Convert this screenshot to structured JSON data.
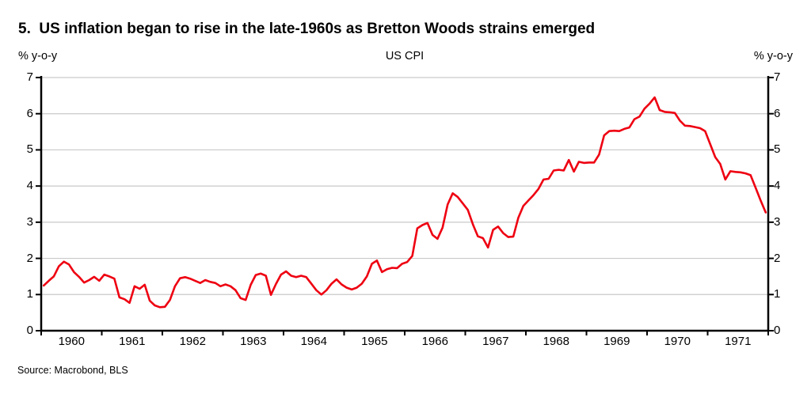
{
  "title": "5.  US inflation began to rise in the late-1960s as Bretton Woods strains emerged",
  "subtitle": "US CPI",
  "left_axis_unit": "% y-o-y",
  "right_axis_unit": "% y-o-y",
  "source": "Source: Macrobond, BLS",
  "colors": {
    "line": "#ee0011",
    "grid": "#c9c9c9",
    "axis": "#000000",
    "text": "#000000",
    "background": "#ffffff"
  },
  "chart_data": {
    "type": "line",
    "title": "US CPI",
    "xlabel": "",
    "ylabel": "% y-o-y",
    "ylim": [
      0,
      7
    ],
    "yticks": [
      0,
      1,
      2,
      3,
      4,
      5,
      6,
      7
    ],
    "grid": "horizontal",
    "legend_position": "none",
    "x_frequency": "monthly",
    "x_start": "1960-01",
    "x_end": "1971-12",
    "x_year_labels": [
      "1960",
      "1961",
      "1962",
      "1963",
      "1964",
      "1965",
      "1966",
      "1967",
      "1968",
      "1969",
      "1970",
      "1971"
    ],
    "series": [
      {
        "name": "US CPI (% y-o-y)",
        "color": "#ee0011",
        "values": [
          1.25,
          1.38,
          1.5,
          1.78,
          1.91,
          1.83,
          1.62,
          1.49,
          1.33,
          1.4,
          1.49,
          1.38,
          1.55,
          1.5,
          1.44,
          0.92,
          0.87,
          0.77,
          1.23,
          1.16,
          1.27,
          0.83,
          0.7,
          0.65,
          0.66,
          0.85,
          1.23,
          1.45,
          1.48,
          1.44,
          1.38,
          1.32,
          1.4,
          1.35,
          1.32,
          1.23,
          1.28,
          1.23,
          1.12,
          0.9,
          0.85,
          1.27,
          1.54,
          1.58,
          1.52,
          0.99,
          1.29,
          1.55,
          1.64,
          1.52,
          1.48,
          1.52,
          1.48,
          1.3,
          1.12,
          1.0,
          1.12,
          1.3,
          1.42,
          1.28,
          1.19,
          1.14,
          1.19,
          1.3,
          1.5,
          1.85,
          1.94,
          1.62,
          1.7,
          1.74,
          1.73,
          1.85,
          1.9,
          2.07,
          2.83,
          2.92,
          2.98,
          2.65,
          2.54,
          2.85,
          3.49,
          3.8,
          3.7,
          3.52,
          3.34,
          2.94,
          2.61,
          2.56,
          2.3,
          2.79,
          2.88,
          2.7,
          2.59,
          2.6,
          3.12,
          3.45,
          3.6,
          3.75,
          3.92,
          4.18,
          4.2,
          4.43,
          4.45,
          4.43,
          4.72,
          4.4,
          4.67,
          4.64,
          4.65,
          4.65,
          4.87,
          5.4,
          5.52,
          5.53,
          5.52,
          5.58,
          5.62,
          5.85,
          5.92,
          6.14,
          6.28,
          6.45,
          6.1,
          6.05,
          6.04,
          6.02,
          5.81,
          5.67,
          5.66,
          5.63,
          5.6,
          5.52,
          5.16,
          4.8,
          4.61,
          4.18,
          4.41,
          4.39,
          4.38,
          4.35,
          4.3,
          3.95,
          3.6,
          3.27
        ]
      }
    ]
  }
}
